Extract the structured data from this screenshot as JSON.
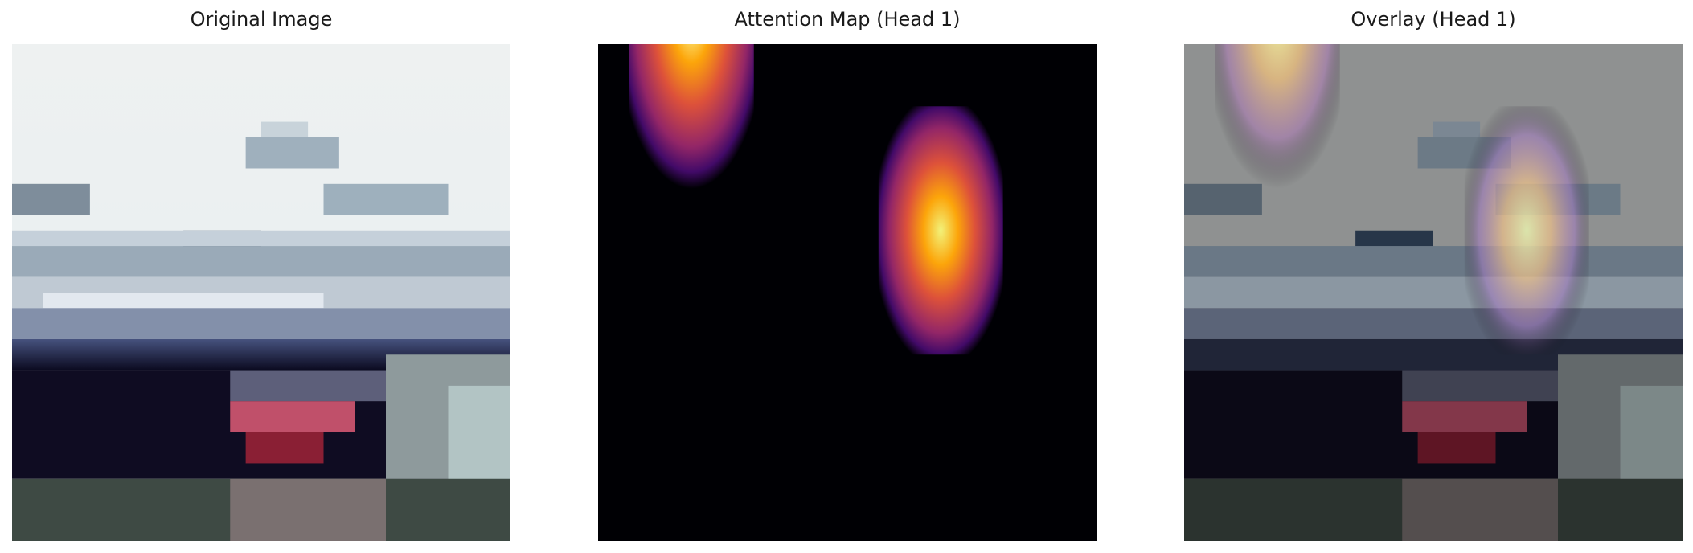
{
  "panels": [
    {
      "title": "Original Image"
    },
    {
      "title": "Attention Map (Head 1)"
    },
    {
      "title": "Overlay (Head 1)"
    }
  ],
  "colors": {
    "background": "#ffffff",
    "heatmap_low": "#000004",
    "heatmap_high": "#fcffa4"
  }
}
